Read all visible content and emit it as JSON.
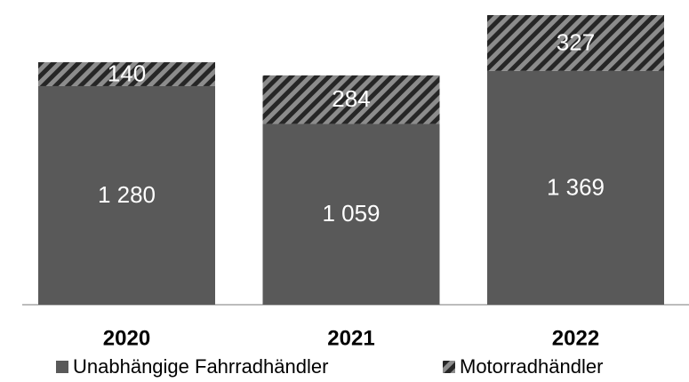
{
  "chart_data": {
    "type": "stacked-bar",
    "categories": [
      "2020",
      "2021",
      "2022"
    ],
    "series": [
      {
        "name": "Unabhängige Fahrradhändler",
        "color": "#595959",
        "values": [
          1280,
          1059,
          1369
        ],
        "value_labels": [
          "1 280",
          "1 059",
          "1 369"
        ]
      },
      {
        "name": "Motorradhändler",
        "color": "hatch",
        "values": [
          140,
          284,
          327
        ]
      }
    ]
  }
}
